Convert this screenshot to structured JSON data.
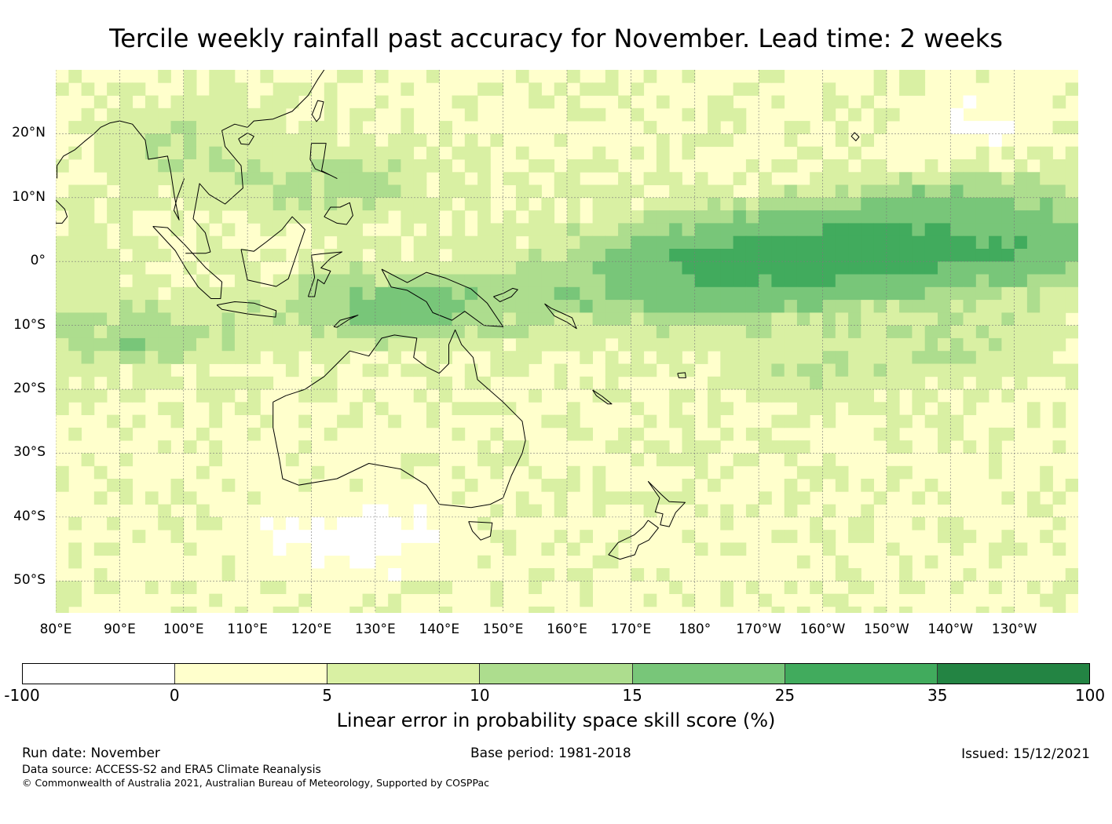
{
  "title": "Tercile weekly rainfall past accuracy for November. Lead time: 2 weeks",
  "map": {
    "lon_range": [
      80,
      240
    ],
    "lat_range": [
      -55,
      30
    ],
    "lat_ticks": [
      {
        "value": 20,
        "label": "20°N"
      },
      {
        "value": 10,
        "label": "10°N"
      },
      {
        "value": 0,
        "label": "0°"
      },
      {
        "value": -10,
        "label": "10°S"
      },
      {
        "value": -20,
        "label": "20°S"
      },
      {
        "value": -30,
        "label": "30°S"
      },
      {
        "value": -40,
        "label": "40°S"
      },
      {
        "value": -50,
        "label": "50°S"
      }
    ],
    "lon_ticks": [
      {
        "value": 80,
        "label": "80°E"
      },
      {
        "value": 90,
        "label": "90°E"
      },
      {
        "value": 100,
        "label": "100°E"
      },
      {
        "value": 110,
        "label": "110°E"
      },
      {
        "value": 120,
        "label": "120°E"
      },
      {
        "value": 130,
        "label": "130°E"
      },
      {
        "value": 140,
        "label": "140°E"
      },
      {
        "value": 150,
        "label": "150°E"
      },
      {
        "value": 160,
        "label": "160°E"
      },
      {
        "value": 170,
        "label": "170°E"
      },
      {
        "value": 180,
        "label": "180°"
      },
      {
        "value": 190,
        "label": "170°W"
      },
      {
        "value": 200,
        "label": "160°W"
      },
      {
        "value": 210,
        "label": "150°W"
      },
      {
        "value": 220,
        "label": "140°W"
      },
      {
        "value": 230,
        "label": "130°W"
      }
    ]
  },
  "colorbar": {
    "ticks": [
      "-100",
      "0",
      "5",
      "10",
      "15",
      "25",
      "35",
      "100"
    ],
    "colors": [
      "#ffffff",
      "#ffffcc",
      "#d9f0a3",
      "#addd8e",
      "#78c679",
      "#41ab5d",
      "#238443"
    ],
    "label": "Linear error in probability space skill score (%)"
  },
  "footer": {
    "run_date": "Run date: November",
    "base_period": "Base period: 1981-2018",
    "issued": "Issued: 15/12/2021",
    "data_source": "Data source: ACCESS-S2 and ERA5 Climate Reanalysis",
    "copyright": "© Commonwealth of Australia 2021, Australian Bureau of Meteorology, Supported by COSPPac"
  }
}
